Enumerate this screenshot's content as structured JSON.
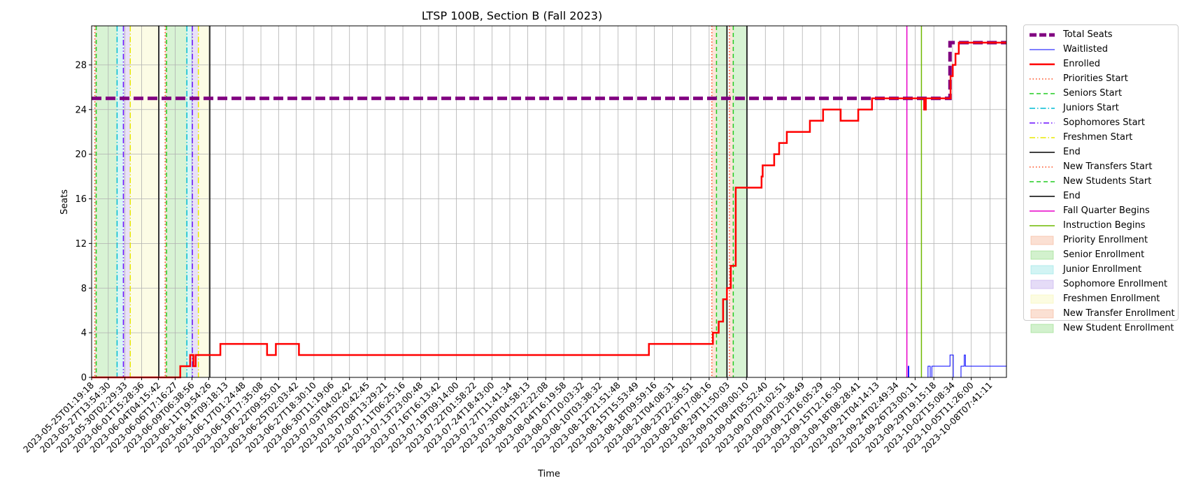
{
  "chart_data": {
    "type": "line",
    "title": "LTSP 100B, Section B (Fall 2023)",
    "xlabel": "Time",
    "ylabel": "Seats",
    "x_range": [
      "2023-05-25T01:19:18",
      "2023-10-10T19:30:00"
    ],
    "ylim": [
      0,
      31.5
    ],
    "yticks": [
      0,
      4,
      8,
      12,
      16,
      20,
      24,
      28
    ],
    "xticks": [
      "2023-05-25T01:19:18",
      "2023-05-27T13:54:30",
      "2023-05-30T02:29:33",
      "2023-06-01T15:28:36",
      "2023-06-04T04:15:42",
      "2023-06-06T17:16:27",
      "2023-06-09T06:38:56",
      "2023-06-11T19:54:26",
      "2023-06-14T09:18:13",
      "2023-06-17T01:24:48",
      "2023-06-19T17:35:08",
      "2023-06-22T09:55:01",
      "2023-06-25T02:03:42",
      "2023-06-27T18:30:10",
      "2023-06-30T11:19:06",
      "2023-07-03T04:02:42",
      "2023-07-05T20:42:45",
      "2023-07-08T13:29:21",
      "2023-07-11T06:25:16",
      "2023-07-13T23:00:48",
      "2023-07-16T16:13:42",
      "2023-07-19T09:14:00",
      "2023-07-22T01:58:22",
      "2023-07-24T18:43:00",
      "2023-07-27T11:41:34",
      "2023-07-30T04:58:13",
      "2023-08-01T22:22:08",
      "2023-08-04T16:19:58",
      "2023-08-07T10:03:32",
      "2023-08-10T03:38:32",
      "2023-08-12T21:51:48",
      "2023-08-15T15:53:49",
      "2023-08-18T09:59:16",
      "2023-08-21T04:08:31",
      "2023-08-23T22:36:51",
      "2023-08-26T17:08:16",
      "2023-08-29T11:50:03",
      "2023-09-01T09:00:10",
      "2023-09-04T05:52:40",
      "2023-09-07T01:02:51",
      "2023-09-09T20:38:49",
      "2023-09-12T16:05:29",
      "2023-09-15T12:16:30",
      "2023-09-18T08:28:41",
      "2023-09-21T04:14:13",
      "2023-09-24T02:49:34",
      "2023-09-26T23:00:11",
      "2023-09-29T19:15:18",
      "2023-10-02T15:08:34",
      "2023-10-05T11:26:00",
      "2023-10-08T07:41:11"
    ],
    "grid": true,
    "legend_position": "outside-right",
    "shaded_periods": [
      {
        "name": "Priority Enrollment",
        "color": "#f4a582",
        "ranges": [
          [
            "2023-05-25T13:00:00",
            "2023-05-25T18:00:00"
          ],
          [
            "2023-06-05T05:00:00",
            "2023-06-05T10:00:00"
          ]
        ]
      },
      {
        "name": "Senior Enrollment",
        "color": "#7fd66f",
        "ranges": [
          [
            "2023-05-25T18:00:00",
            "2023-05-28T22:00:00"
          ],
          [
            "2023-06-05T10:00:00",
            "2023-06-08T12:00:00"
          ]
        ]
      },
      {
        "name": "Junior Enrollment",
        "color": "#7fe0e0",
        "ranges": [
          [
            "2023-05-28T22:00:00",
            "2023-05-29T21:00:00"
          ],
          [
            "2023-06-08T12:00:00",
            "2023-06-09T08:00:00"
          ]
        ]
      },
      {
        "name": "Sophomore Enrollment",
        "color": "#b59be8",
        "ranges": [
          [
            "2023-05-29T21:00:00",
            "2023-05-30T22:00:00"
          ],
          [
            "2023-06-09T08:00:00",
            "2023-06-10T06:00:00"
          ]
        ]
      },
      {
        "name": "Freshmen Enrollment",
        "color": "#f5f5a8",
        "ranges": [
          [
            "2023-05-30T22:00:00",
            "2023-06-04T06:00:00"
          ],
          [
            "2023-06-10T06:00:00",
            "2023-06-11T23:30:00"
          ]
        ]
      },
      {
        "name": "New Transfer Enrollment",
        "color": "#f4a582",
        "ranges": [
          [
            "2023-08-27T03:00:00",
            "2023-08-27T20:00:00"
          ],
          [
            "2023-08-29T19:00:00",
            "2023-08-30T09:00:00"
          ]
        ]
      },
      {
        "name": "New Student Enrollment",
        "color": "#7fd66f",
        "ranges": [
          [
            "2023-08-27T20:00:00",
            "2023-08-29T10:00:00"
          ],
          [
            "2023-08-30T09:00:00",
            "2023-09-01T11:00:00"
          ]
        ]
      }
    ],
    "vertical_lines": [
      {
        "name": "Priorities Start",
        "color": "#ff4a1c",
        "dash": "dotted",
        "at": [
          "2023-05-25T13:00:00",
          "2023-06-05T05:00:00"
        ]
      },
      {
        "name": "Seniors Start",
        "color": "#22cc22",
        "dash": "dashed",
        "at": [
          "2023-05-25T18:00:00",
          "2023-06-05T10:00:00"
        ]
      },
      {
        "name": "Juniors Start",
        "color": "#00bcd4",
        "dash": "dashdot",
        "at": [
          "2023-05-28T22:00:00",
          "2023-06-08T12:00:00"
        ]
      },
      {
        "name": "Sophomores Start",
        "color": "#6a0dff",
        "dash": "dashdotdot",
        "at": [
          "2023-05-29T21:00:00",
          "2023-06-09T08:00:00"
        ]
      },
      {
        "name": "Freshmen Start",
        "color": "#e8e800",
        "dash": "dashdot",
        "at": [
          "2023-05-30T22:00:00",
          "2023-06-10T06:00:00"
        ]
      },
      {
        "name": "End",
        "color": "#000000",
        "dash": "solid",
        "at": [
          "2023-06-04T06:00:00",
          "2023-06-11T23:30:00"
        ]
      },
      {
        "name": "New Transfers Start",
        "color": "#ff4a1c",
        "dash": "dotted",
        "at": [
          "2023-08-27T03:00:00",
          "2023-08-29T19:00:00"
        ]
      },
      {
        "name": "New Students Start",
        "color": "#22cc22",
        "dash": "dashed",
        "at": [
          "2023-08-27T20:00:00",
          "2023-08-30T09:00:00"
        ]
      },
      {
        "name": "End",
        "color": "#000000",
        "dash": "solid",
        "at": [
          "2023-08-29T10:00:00",
          "2023-09-01T11:00:00"
        ]
      },
      {
        "name": "Fall Quarter Begins",
        "color": "#e800c8",
        "dash": "solid",
        "at": [
          "2023-09-25T17:00:00"
        ]
      },
      {
        "name": "Instruction Begins",
        "color": "#6fb800",
        "dash": "solid",
        "at": [
          "2023-09-27T22:00:00"
        ]
      }
    ],
    "series": [
      {
        "name": "Total Seats",
        "color": "#800080",
        "dash": "dashed",
        "width": 5,
        "step": true,
        "x": [
          "2023-05-25T01:19:18",
          "2023-10-02T06:00:00",
          "2023-10-02T06:00:00",
          "2023-10-10T19:30:00"
        ],
        "y": [
          25,
          25,
          30,
          30
        ]
      },
      {
        "name": "Waitlisted",
        "color": "#0000ff",
        "dash": "solid",
        "width": 1,
        "step": true,
        "x": [
          "2023-05-25T01:19:18",
          "2023-09-25T22:00:00",
          "2023-09-25T22:00:00",
          "2023-09-26T00:00:00",
          "2023-09-26T00:00:00",
          "2023-09-28T22:00:00",
          "2023-09-28T22:00:00",
          "2023-09-29T06:00:00",
          "2023-09-29T06:00:00",
          "2023-09-29T12:00:00",
          "2023-09-29T12:00:00",
          "2023-09-29T20:00:00",
          "2023-09-29T20:00:00",
          "2023-10-02T06:00:00",
          "2023-10-02T06:00:00",
          "2023-10-02T18:00:00",
          "2023-10-02T18:00:00",
          "2023-10-03T22:00:00",
          "2023-10-03T22:00:00",
          "2023-10-04T10:00:00",
          "2023-10-04T10:00:00",
          "2023-10-04T14:00:00",
          "2023-10-04T14:00:00",
          "2023-10-10T19:30:00"
        ],
        "y": [
          0,
          0,
          1,
          1,
          0,
          0,
          1,
          1,
          0,
          0,
          1,
          1,
          1,
          1,
          2,
          2,
          0,
          0,
          1,
          1,
          2,
          2,
          1,
          1
        ]
      },
      {
        "name": "Enrolled",
        "color": "#ff0000",
        "dash": "solid",
        "width": 2.5,
        "step": true,
        "x": [
          "2023-05-25T01:19:18",
          "2023-06-07T12:00:00",
          "2023-06-09T00:00:00",
          "2023-06-09T12:00:00",
          "2023-06-09T20:00:00",
          "2023-06-10T14:00:00",
          "2023-06-13T14:00:00",
          "2023-06-20T16:00:00",
          "2023-06-22T00:00:00",
          "2023-06-25T12:00:00",
          "2023-08-17T14:00:00",
          "2023-08-27T07:00:00",
          "2023-08-28T04:00:00",
          "2023-08-28T20:00:00",
          "2023-08-29T10:00:00",
          "2023-08-30T00:00:00",
          "2023-08-30T18:00:00",
          "2023-08-30T23:00:00",
          "2023-08-31T12:00:00",
          "2023-09-03T16:00:00",
          "2023-09-03T20:00:00",
          "2023-09-05T10:00:00",
          "2023-09-05T14:00:00",
          "2023-09-06T08:00:00",
          "2023-09-07T12:00:00",
          "2023-09-11T00:00:00",
          "2023-09-13T00:00:00",
          "2023-09-15T16:00:00",
          "2023-09-18T08:00:00",
          "2023-09-20T10:00:00",
          "2023-09-21T14:00:00",
          "2023-09-25T16:00:00",
          "2023-09-26T06:00:00",
          "2023-09-28T08:00:00",
          "2023-09-28T14:00:00",
          "2023-10-02T08:00:00",
          "2023-10-02T16:00:00",
          "2023-10-03T02:00:00",
          "2023-10-03T14:00:00",
          "2023-10-10T19:30:00"
        ],
        "y": [
          0,
          1,
          2,
          1,
          2,
          2,
          3,
          2,
          3,
          2,
          3,
          4,
          5,
          7,
          8,
          10,
          17,
          17,
          17,
          18,
          19,
          19,
          20,
          21,
          22,
          23,
          24,
          23,
          24,
          25,
          25,
          25,
          25,
          24,
          25,
          27,
          28,
          29,
          30,
          30
        ]
      }
    ]
  }
}
